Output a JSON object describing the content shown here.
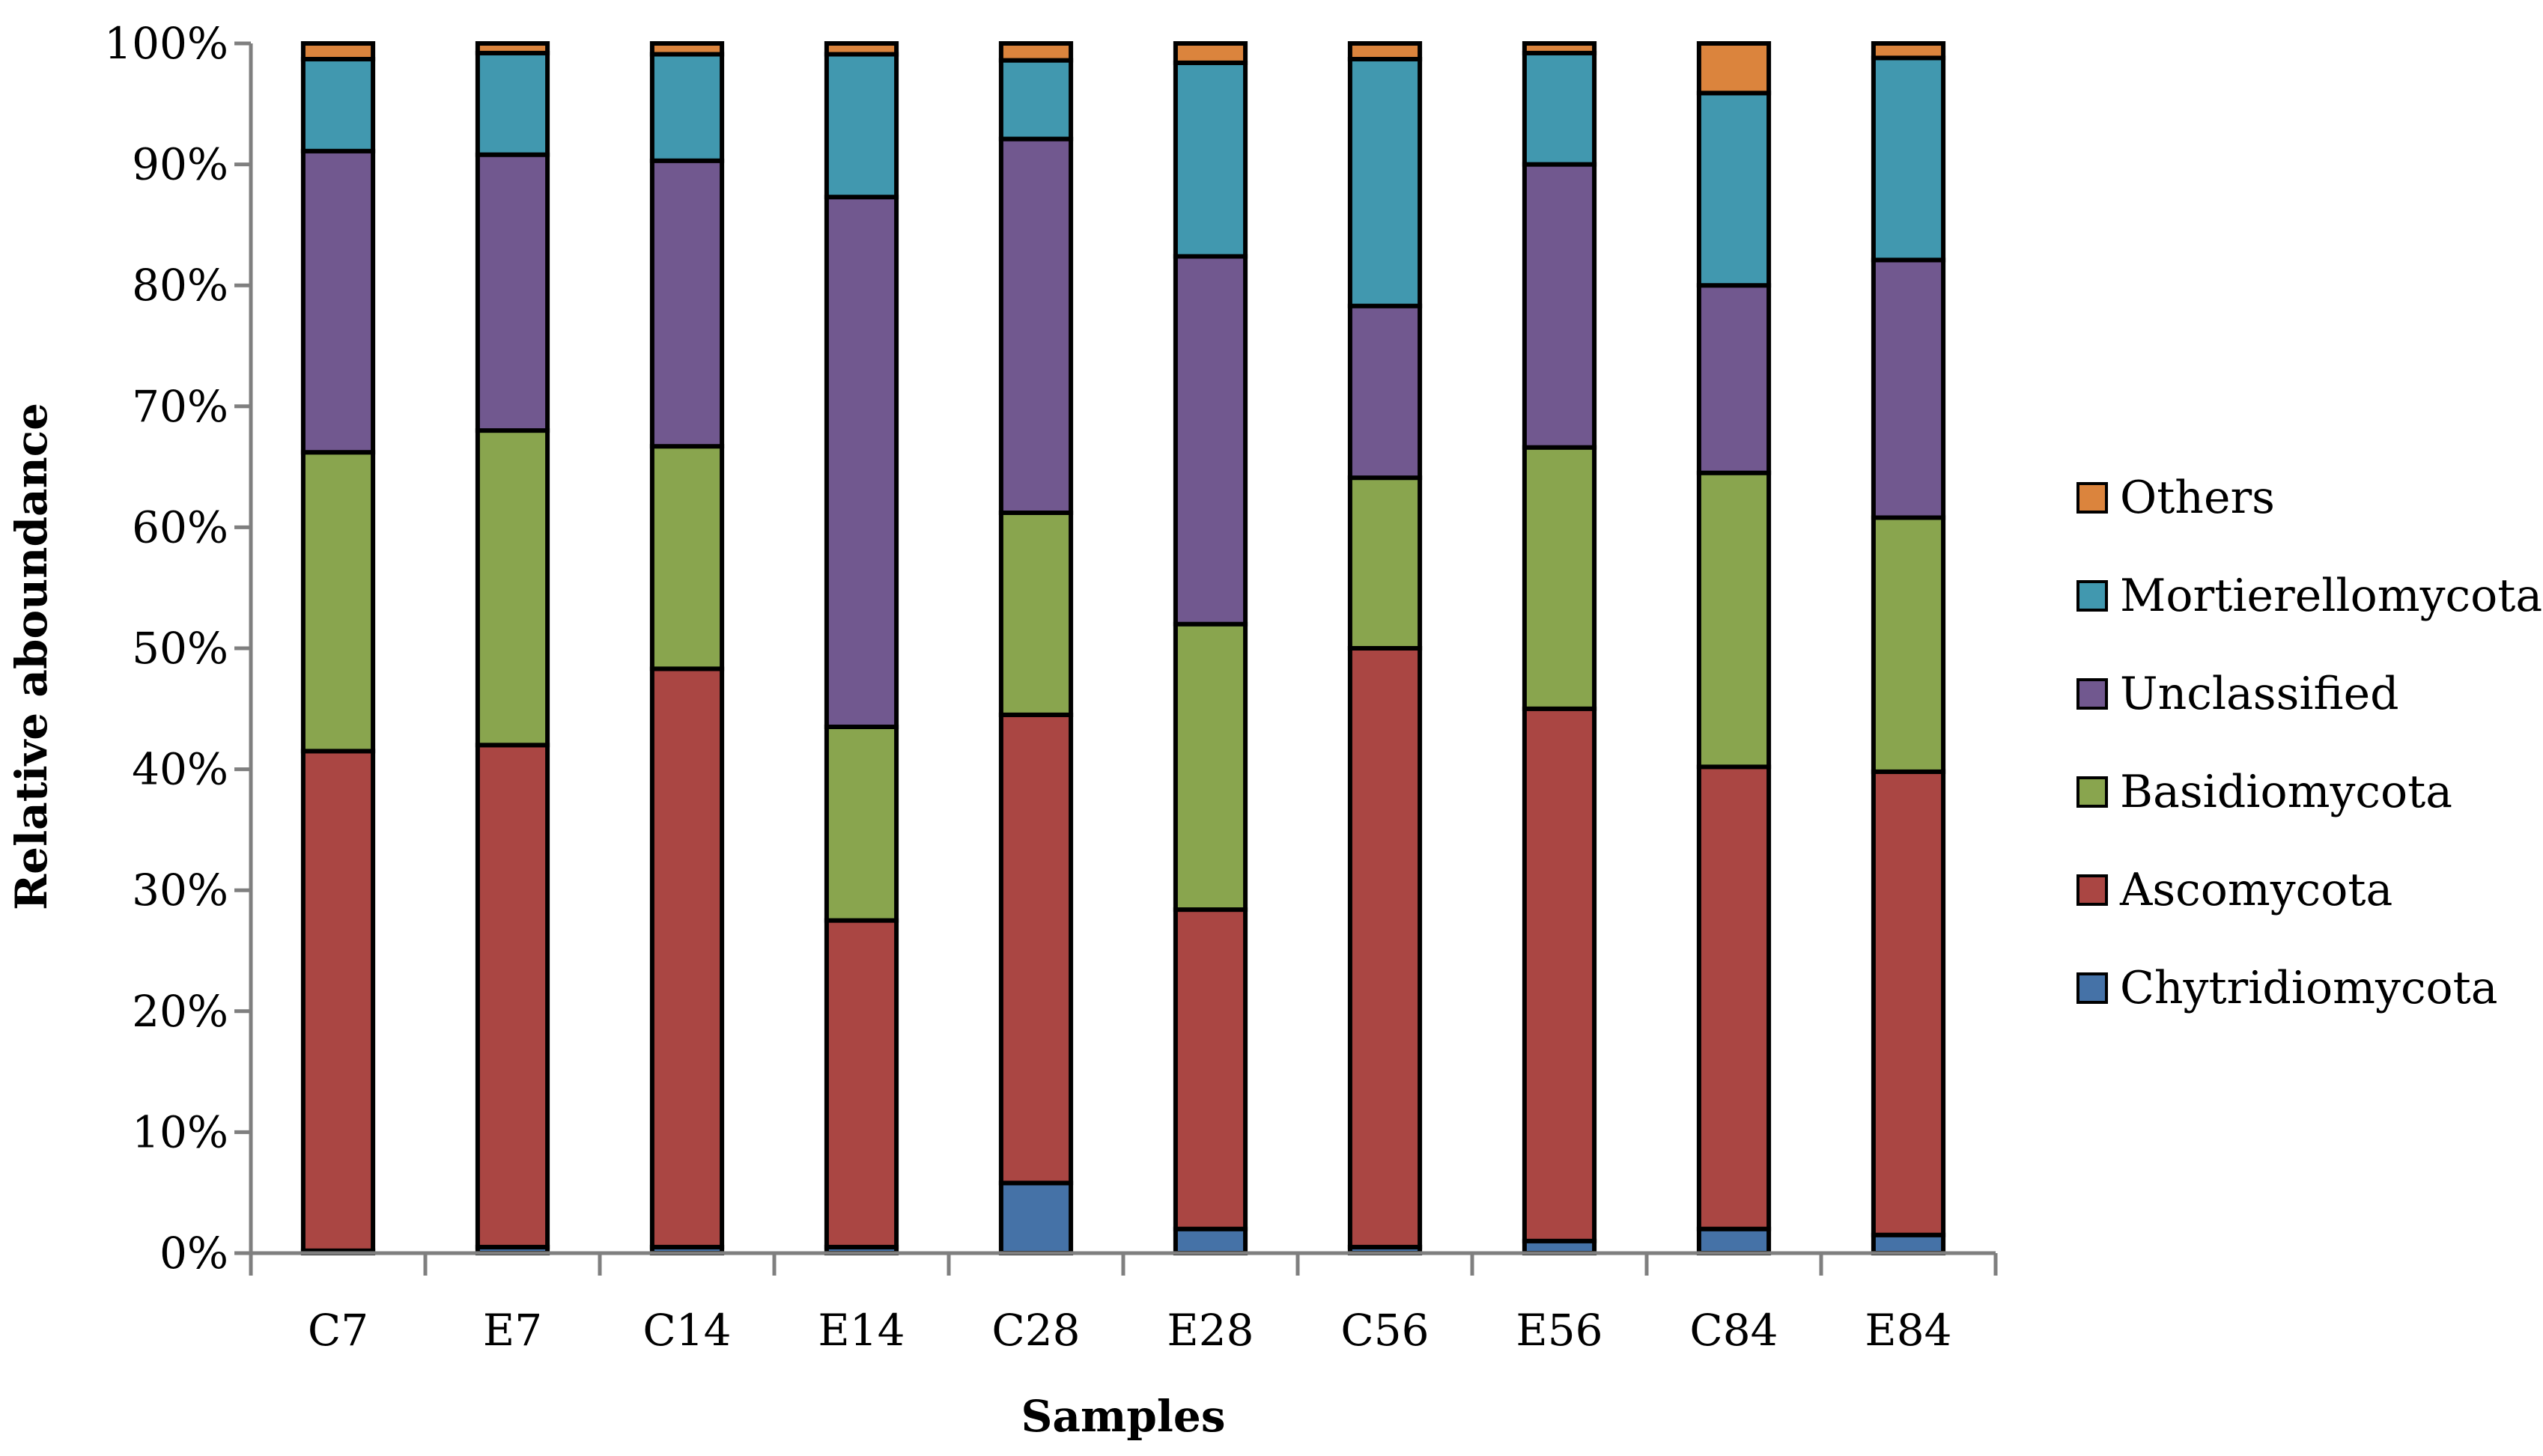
{
  "chart_data": {
    "type": "bar",
    "stacked": true,
    "title": "",
    "xlabel": "Samples",
    "ylabel": "Relative aboundance",
    "ylim": [
      0,
      100
    ],
    "yticks": [
      "0%",
      "10%",
      "20%",
      "30%",
      "40%",
      "50%",
      "60%",
      "70%",
      "80%",
      "90%",
      "100%"
    ],
    "categories": [
      "C7",
      "E7",
      "C14",
      "E14",
      "C28",
      "E28",
      "C56",
      "E56",
      "C84",
      "E84"
    ],
    "legend_position": "right",
    "series": [
      {
        "name": "Chytridiomycota",
        "color": "#4572A7",
        "values": [
          0.2,
          0.5,
          0.5,
          0.5,
          5.8,
          2.0,
          0.5,
          1.0,
          2.0,
          1.5
        ]
      },
      {
        "name": "Ascomycota",
        "color": "#AA4643",
        "values": [
          41.3,
          41.5,
          47.8,
          27.0,
          38.7,
          26.4,
          49.5,
          44.0,
          38.2,
          38.3
        ]
      },
      {
        "name": "Basidiomycota",
        "color": "#89A54E",
        "values": [
          24.7,
          26.0,
          18.4,
          16.0,
          16.7,
          23.6,
          14.1,
          21.6,
          24.3,
          21.0
        ]
      },
      {
        "name": "Unclassified",
        "color": "#71588F",
        "values": [
          24.9,
          22.8,
          23.6,
          43.8,
          30.9,
          30.4,
          14.2,
          23.4,
          15.5,
          21.3
        ]
      },
      {
        "name": "Mortierellomycota",
        "color": "#4198AF",
        "values": [
          7.6,
          8.4,
          8.8,
          11.8,
          6.5,
          16.0,
          20.4,
          9.2,
          15.9,
          16.7
        ]
      },
      {
        "name": "Others",
        "color": "#DB843D",
        "values": [
          1.3,
          0.8,
          0.9,
          0.9,
          1.4,
          1.6,
          1.3,
          0.8,
          4.1,
          1.2
        ]
      }
    ],
    "legend_order": [
      "Others",
      "Mortierellomycota",
      "Unclassified",
      "Basidiomycota",
      "Ascomycota",
      "Chytridiomycota"
    ]
  }
}
